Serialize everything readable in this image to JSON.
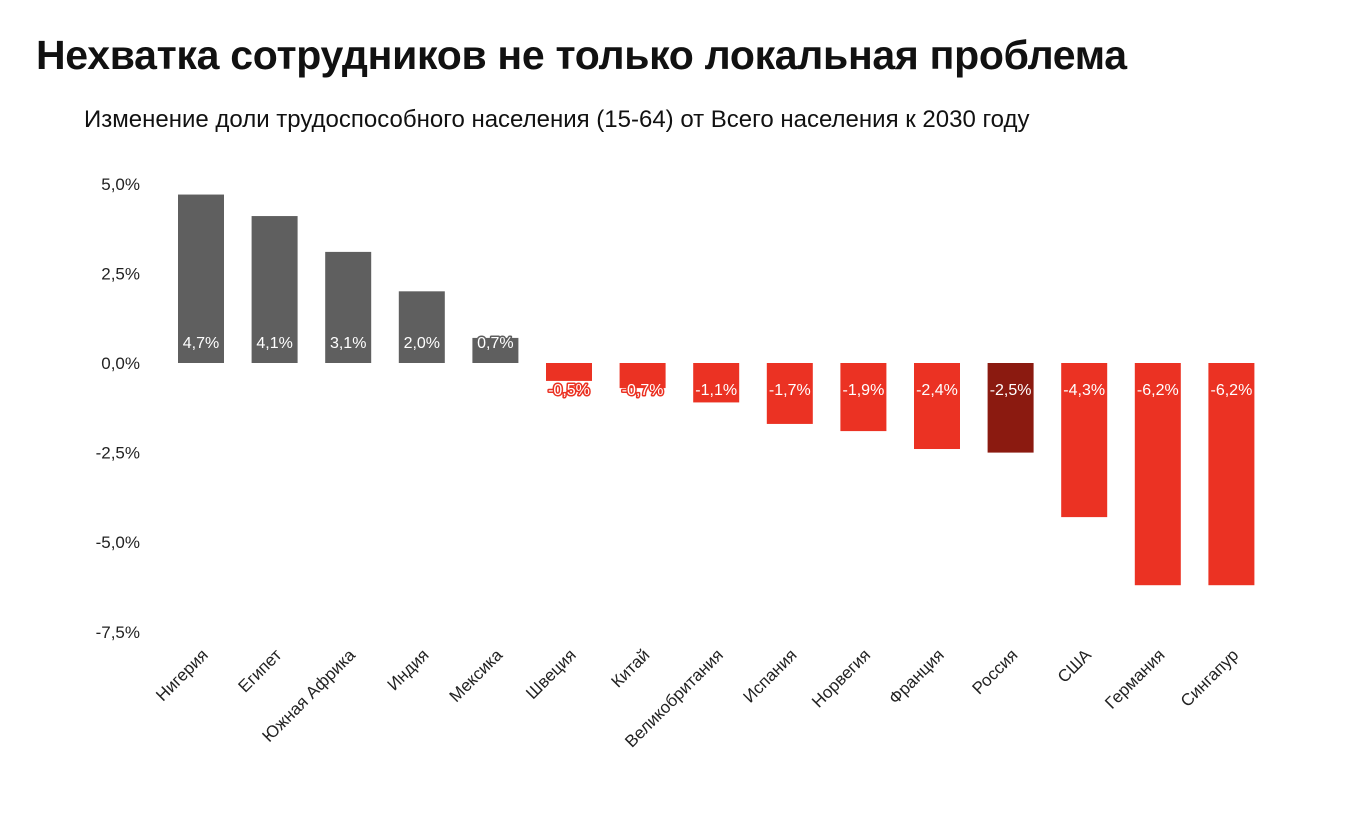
{
  "title": "Нехватка сотрудников не только локальная проблема",
  "subtitle": "Изменение доли трудоспособного населения (15-64) от Всего населения к 2030 году",
  "chart_data": {
    "type": "bar",
    "title": "Нехватка сотрудников не только локальная проблема",
    "subtitle": "Изменение доли трудоспособного населения (15-64) от Всего населения к 2030 году",
    "categories": [
      "Нигерия",
      "Египет",
      "Южная Африка",
      "Индия",
      "Мексика",
      "Швеция",
      "Китай",
      "Великобритания",
      "Испания",
      "Норвегия",
      "Франция",
      "Россия",
      "США",
      "Германия",
      "Сингапур"
    ],
    "values": [
      4.7,
      4.1,
      3.1,
      2.0,
      0.7,
      -0.5,
      -0.7,
      -1.1,
      -1.7,
      -1.9,
      -2.4,
      -2.5,
      -4.3,
      -6.2,
      -6.2
    ],
    "data_labels": [
      "4,7%",
      "4,1%",
      "3,1%",
      "2,0%",
      "0,7%",
      "-0,5%",
      "-0,7%",
      "-1,1%",
      "-1,7%",
      "-1,9%",
      "-2,4%",
      "-2,5%",
      "-4,3%",
      "-6,2%",
      "-6,2%"
    ],
    "yticks": [
      5.0,
      2.5,
      0.0,
      -2.5,
      -5.0,
      -7.5
    ],
    "ytick_labels": [
      "5,0%",
      "2,5%",
      "0,0%",
      "-2,5%",
      "-5,0%",
      "-7,5%"
    ],
    "ylim": [
      -7.5,
      5.0
    ],
    "grid": false,
    "colors": {
      "positive": "#5f5f5f",
      "negative": "#eb3223",
      "highlight": "#8b1a10"
    },
    "highlight_category": "Россия"
  }
}
